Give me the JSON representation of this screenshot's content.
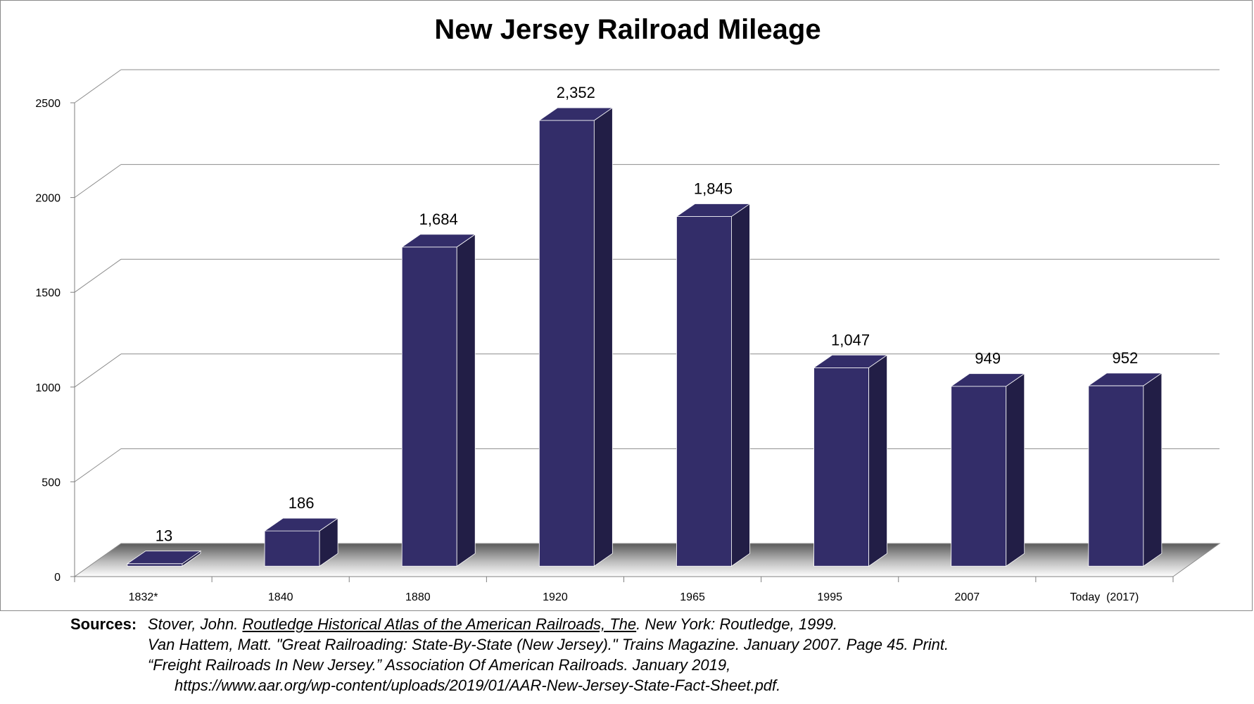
{
  "chart_data": {
    "type": "bar",
    "title": "New Jersey Railroad Mileage",
    "categories": [
      "1832*",
      "1840",
      "1880",
      "1920",
      "1965",
      "1995",
      "2007",
      "Today  (2017)"
    ],
    "values": [
      13,
      186,
      1684,
      2352,
      1845,
      1047,
      949,
      952
    ],
    "data_labels": [
      "13",
      "186",
      "1,684",
      "2,352",
      "1,845",
      "1,047",
      "949",
      "952"
    ],
    "y_ticks": [
      0,
      500,
      1000,
      1500,
      2000,
      2500
    ],
    "ylim": [
      0,
      2500
    ],
    "grid": true,
    "legend": "none",
    "bar_color": "#332d69",
    "bar_side_color": "#221e46"
  },
  "sources": {
    "label": "Sources:",
    "line1_pre": "Stover, John. ",
    "line1_link": "Routledge Historical Atlas of the American Railroads, The",
    "line1_post": ". New York: Routledge, 1999.",
    "line2": "Van Hattem, Matt. \"Great Railroading: State-By-State (New Jersey).\" Trains Magazine. January 2007. Page 45. Print.",
    "line3": "“Freight Railroads In New Jersey.” Association Of American Railroads. January 2019,",
    "line4": "https://www.aar.org/wp-content/uploads/2019/01/AAR-New-Jersey-State-Fact-Sheet.pdf."
  }
}
